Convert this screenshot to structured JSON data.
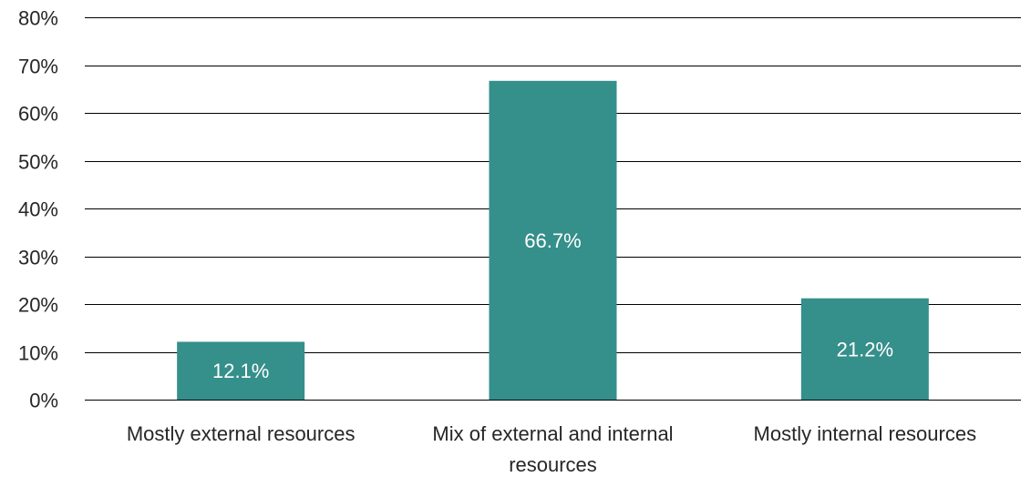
{
  "chart_data": {
    "type": "bar",
    "title": "",
    "xlabel": "",
    "ylabel": "",
    "categories": [
      [
        "Mostly external resources"
      ],
      [
        "Mix of external and internal",
        "resources"
      ],
      [
        "Mostly internal resources"
      ]
    ],
    "values": [
      12.1,
      66.7,
      21.2
    ],
    "data_labels": [
      "12.1%",
      "66.7%",
      "21.2%"
    ],
    "ylim": [
      0,
      80
    ],
    "yticks": [
      0,
      10,
      20,
      30,
      40,
      50,
      60,
      70,
      80
    ],
    "ytick_labels": [
      "0%",
      "10%",
      "20%",
      "30%",
      "40%",
      "50%",
      "60%",
      "70%",
      "80%"
    ],
    "grid": true,
    "legend": "none",
    "colors": {
      "bar": "#358F8B",
      "gridline": "#000000",
      "text": "#262626",
      "data_label": "#FFFFFF"
    }
  }
}
